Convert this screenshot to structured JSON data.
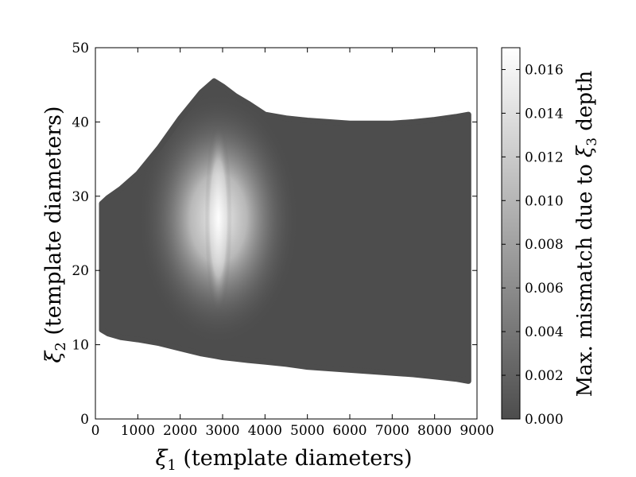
{
  "chart_data": {
    "type": "heatmap",
    "title": "",
    "xlabel": "ξ1 (template diameters)",
    "ylabel": "ξ2 (template diameters)",
    "xlabel_parts": {
      "symbol": "ξ",
      "sub": "1",
      "rest": " (template diameters)"
    },
    "ylabel_parts": {
      "symbol": "ξ",
      "sub": "2",
      "rest": " (template diameters)"
    },
    "xlim": [
      0,
      9000
    ],
    "ylim": [
      0,
      50
    ],
    "xticks": [
      "0",
      "1000",
      "2000",
      "3000",
      "4000",
      "5000",
      "6000",
      "7000",
      "8000",
      "9000"
    ],
    "yticks": [
      "0",
      "10",
      "20",
      "30",
      "40",
      "50"
    ],
    "grid": false,
    "colormap": "gray",
    "colors": {
      "low": "#4d4d4d",
      "high": "#ffffff"
    },
    "region_boundary": {
      "x": [
        150,
        300,
        600,
        1000,
        1500,
        2000,
        2500,
        2800,
        3000,
        3300,
        3600,
        4000,
        4500,
        5000,
        6000,
        7000,
        7500,
        8000,
        8500,
        8800
      ],
      "y_top": [
        29,
        29.8,
        31,
        33,
        36.5,
        40.5,
        44,
        45.5,
        44.8,
        43.5,
        42.5,
        41,
        40.5,
        40.2,
        39.8,
        39.8,
        40,
        40.3,
        40.7,
        41
      ],
      "y_bottom": [
        12,
        11.5,
        11,
        10.7,
        10.2,
        9.5,
        8.8,
        8.5,
        8.3,
        8.1,
        7.9,
        7.7,
        7.4,
        7.0,
        6.6,
        6.2,
        6.0,
        5.7,
        5.4,
        5.1
      ]
    },
    "peak": {
      "x": 2900,
      "y": 27,
      "value": 0.0166
    },
    "colorbar": {
      "label": "Max. mismatch due to ξ3 depth",
      "label_parts": {
        "before": "Max. mismatch due to ",
        "symbol": "ξ",
        "sub": "3",
        "after": " depth"
      },
      "range": [
        0,
        0.017
      ],
      "ticks": [
        0.0,
        0.002,
        0.004,
        0.006,
        0.008,
        0.01,
        0.012,
        0.014,
        0.016
      ],
      "tick_labels": [
        "0.000",
        "0.002",
        "0.004",
        "0.006",
        "0.008",
        "0.010",
        "0.012",
        "0.014",
        "0.016"
      ]
    }
  }
}
